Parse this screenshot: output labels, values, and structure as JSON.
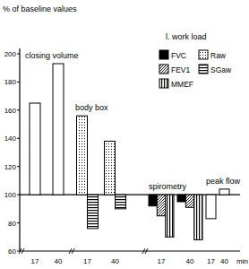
{
  "chart_data": {
    "type": "bar",
    "title": "% of baseline values",
    "annotation": "l. work load",
    "x_label": "min",
    "ylim": [
      60,
      200
    ],
    "yticks": [
      60,
      80,
      100,
      120,
      140,
      160,
      180,
      200
    ],
    "baseline": 100,
    "legend": "top-right",
    "groups": [
      {
        "label": "closing volume",
        "categories": [
          "17",
          "40"
        ],
        "series": [
          {
            "color": "#ffffff",
            "marker": "none",
            "values": [
              165,
              193
            ]
          }
        ]
      },
      {
        "label": "body box",
        "categories": [
          "17",
          "40"
        ],
        "series": [
          {
            "name": "Raw",
            "color": "#ffffff",
            "marker": "dots",
            "values": [
              156,
              138
            ]
          },
          {
            "name": "SGaw",
            "color": "#ffffff",
            "marker": "horizontal",
            "values": [
              76,
              90
            ]
          }
        ]
      },
      {
        "label": "spirometry",
        "categories": [
          "17",
          "40"
        ],
        "series": [
          {
            "name": "FVC",
            "color": "#000000",
            "marker": "solid",
            "values": [
              92,
              95
            ]
          },
          {
            "name": "FEV1",
            "color": "#ffffff",
            "marker": "diagonal",
            "values": [
              85,
              91
            ]
          },
          {
            "name": "MMEF",
            "color": "#ffffff",
            "marker": "vertical",
            "values": [
              70,
              68
            ]
          }
        ]
      },
      {
        "label": "peak flow",
        "categories": [
          "17",
          "40"
        ],
        "series": [
          {
            "color": "#ffffff",
            "marker": "none",
            "values": [
              83,
              104
            ]
          }
        ]
      }
    ]
  }
}
